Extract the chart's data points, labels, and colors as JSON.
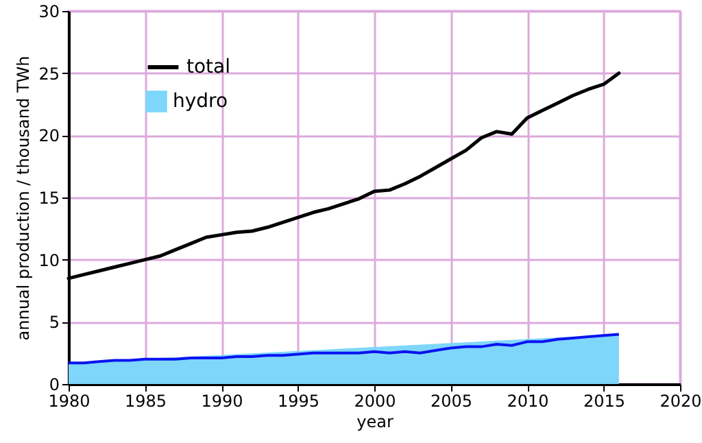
{
  "chart_data": {
    "type": "line",
    "xlabel": "year",
    "ylabel": "annual production / thousand TWh",
    "x": [
      1980,
      1981,
      1982,
      1983,
      1984,
      1985,
      1986,
      1987,
      1988,
      1989,
      1990,
      1991,
      1992,
      1993,
      1994,
      1995,
      1996,
      1997,
      1998,
      1999,
      2000,
      2001,
      2002,
      2003,
      2004,
      2005,
      2006,
      2007,
      2008,
      2009,
      2010,
      2011,
      2012,
      2013,
      2014,
      2015,
      2016
    ],
    "series": [
      {
        "name": "total",
        "color": "#000000",
        "values": [
          8.5,
          8.8,
          9.1,
          9.4,
          9.7,
          10.0,
          10.3,
          10.8,
          11.3,
          11.8,
          12.0,
          12.2,
          12.3,
          12.6,
          13.0,
          13.4,
          13.8,
          14.1,
          14.5,
          14.9,
          15.5,
          15.6,
          16.1,
          16.7,
          17.4,
          18.1,
          18.8,
          19.8,
          20.3,
          20.1,
          21.4,
          22.0,
          22.6,
          23.2,
          23.7,
          24.1,
          25.0
        ]
      },
      {
        "name": "hydro",
        "type": "area",
        "color": "#7fd6fb",
        "values": [
          1.7,
          1.7,
          1.8,
          1.9,
          1.9,
          2.0,
          2.0,
          2.0,
          2.1,
          2.1,
          2.1,
          2.2,
          2.2,
          2.3,
          2.3,
          2.4,
          2.5,
          2.5,
          2.5,
          2.5,
          2.6,
          2.5,
          2.6,
          2.5,
          2.7,
          2.9,
          3.0,
          3.0,
          3.2,
          3.1,
          3.4,
          3.4,
          3.6,
          3.7,
          3.8,
          3.9,
          4.0
        ]
      }
    ],
    "xlim": [
      1980,
      2020
    ],
    "xticks": [
      1980,
      1985,
      1990,
      1995,
      2000,
      2005,
      2010,
      2015,
      2020
    ],
    "ylim": [
      0,
      30
    ],
    "yticks": [
      0,
      5,
      10,
      15,
      20,
      25,
      30
    ],
    "grid": true,
    "legend": "top left"
  }
}
